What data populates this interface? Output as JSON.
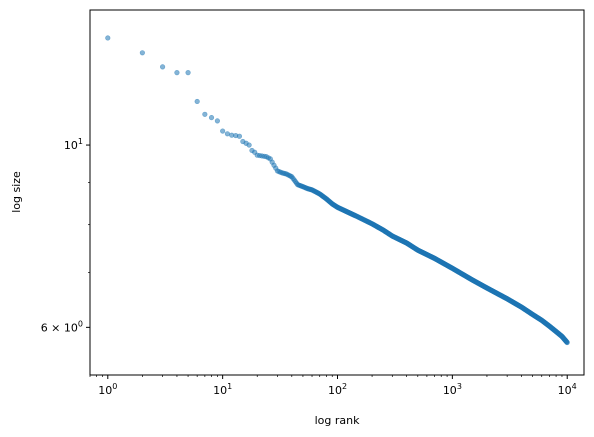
{
  "chart_data": {
    "type": "scatter",
    "title": "",
    "xlabel": "log rank",
    "ylabel": "log size",
    "xscale": "log",
    "yscale": "log",
    "xlim": [
      0.7,
      14000
    ],
    "ylim": [
      5.25,
      14.6
    ],
    "grid": false,
    "marker_color": "#1f77b4",
    "marker_alpha": 0.55,
    "x_ticks": [
      {
        "value": 1,
        "base": "10",
        "exp": "0"
      },
      {
        "value": 10,
        "base": "10",
        "exp": "1"
      },
      {
        "value": 100,
        "base": "10",
        "exp": "2"
      },
      {
        "value": 1000,
        "base": "10",
        "exp": "3"
      },
      {
        "value": 10000,
        "base": "10",
        "exp": "4"
      }
    ],
    "y_ticks": [
      {
        "value": 10,
        "text": "10",
        "sup": "1"
      },
      {
        "value": 6,
        "text": "6 × 10",
        "sup": "0"
      }
    ],
    "y_minor_ticks": [
      7,
      8,
      9
    ],
    "series": [
      {
        "points": [
          [
            1,
            13.5
          ],
          [
            2,
            12.95
          ],
          [
            3,
            12.45
          ],
          [
            4,
            12.25
          ],
          [
            5,
            12.25
          ],
          [
            6,
            11.3
          ],
          [
            7,
            10.9
          ],
          [
            8,
            10.8
          ],
          [
            9,
            10.7
          ],
          [
            10,
            10.4
          ],
          [
            11,
            10.32
          ],
          [
            12,
            10.28
          ],
          [
            13,
            10.27
          ],
          [
            14,
            10.25
          ],
          [
            15,
            10.1
          ],
          [
            16,
            10.05
          ],
          [
            17,
            10.0
          ],
          [
            18,
            9.85
          ],
          [
            19,
            9.8
          ],
          [
            20,
            9.72
          ],
          [
            22,
            9.7
          ],
          [
            24,
            9.68
          ],
          [
            26,
            9.62
          ],
          [
            28,
            9.45
          ],
          [
            30,
            9.3
          ],
          [
            33,
            9.25
          ],
          [
            36,
            9.22
          ],
          [
            40,
            9.15
          ],
          [
            45,
            8.95
          ],
          [
            50,
            8.9
          ],
          [
            55,
            8.85
          ],
          [
            60,
            8.82
          ],
          [
            70,
            8.72
          ],
          [
            80,
            8.6
          ],
          [
            90,
            8.48
          ],
          [
            100,
            8.4
          ],
          [
            120,
            8.3
          ],
          [
            150,
            8.18
          ],
          [
            200,
            8.02
          ],
          [
            250,
            7.88
          ],
          [
            300,
            7.75
          ],
          [
            400,
            7.6
          ],
          [
            500,
            7.45
          ],
          [
            700,
            7.28
          ],
          [
            1000,
            7.08
          ],
          [
            1500,
            6.85
          ],
          [
            2000,
            6.7
          ],
          [
            3000,
            6.5
          ],
          [
            4000,
            6.35
          ],
          [
            5000,
            6.22
          ],
          [
            6000,
            6.12
          ],
          [
            7000,
            6.02
          ],
          [
            8000,
            5.93
          ],
          [
            9000,
            5.85
          ],
          [
            10000,
            5.75
          ]
        ]
      }
    ]
  }
}
